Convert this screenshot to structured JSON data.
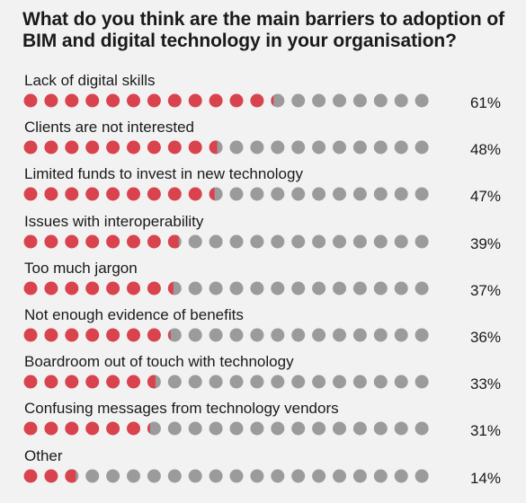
{
  "title": "What do you think are the main barriers to adoption of BIM and digital technology in your organisation?",
  "colors": {
    "filled": "#d9434d",
    "empty": "#9b9b9b",
    "background": "#f2f2f2"
  },
  "chart_data": {
    "type": "bar",
    "title": "What do you think are the main barriers to adoption of BIM and digital technology in your organisation?",
    "unit": "%",
    "categories": [
      "Lack of digital skills",
      "Clients are not interested",
      "Limited funds to invest in new technology",
      "Issues with interoperability",
      "Too much jargon",
      "Not enough evidence of benefits",
      "Boardroom out of touch with technology",
      "Confusing messages from technology vendors",
      "Other"
    ],
    "values": [
      61,
      48,
      47,
      39,
      37,
      36,
      33,
      31,
      14
    ],
    "value_labels": [
      "61%",
      "48%",
      "47%",
      "39%",
      "37%",
      "36%",
      "33%",
      "31%",
      "14%"
    ],
    "dots_per_row": 20
  }
}
